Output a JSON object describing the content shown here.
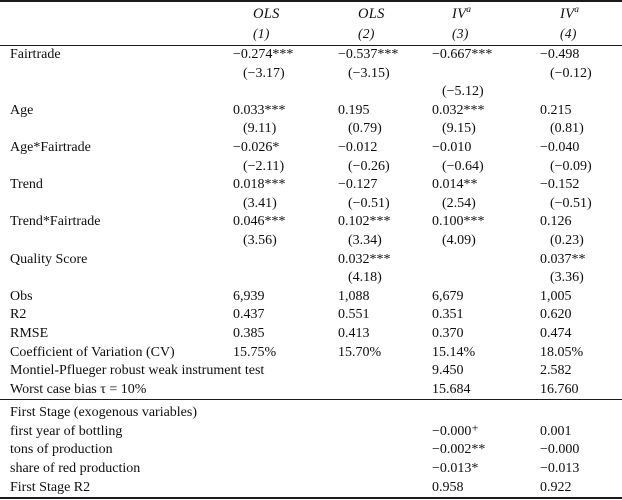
{
  "table": {
    "header": {
      "cols": [
        {
          "name": "OLS",
          "sup": "",
          "num": "(1)"
        },
        {
          "name": "OLS",
          "sup": "",
          "num": "(2)"
        },
        {
          "name": "IV",
          "sup": "a",
          "num": "(3)"
        },
        {
          "name": "IV",
          "sup": "a",
          "num": "(4)"
        }
      ]
    },
    "rows": [
      {
        "label": "Fairtrade",
        "cells": [
          "−0.274***",
          "−0.537***",
          "−0.667***",
          "−0.498"
        ]
      },
      {
        "t": true,
        "label": "",
        "cells": [
          "(−3.17)",
          "(−3.15)",
          "",
          "(−0.12)"
        ]
      },
      {
        "t": true,
        "label": "",
        "cells": [
          "",
          "",
          "(−5.12)",
          ""
        ]
      },
      {
        "label": "Age",
        "cells": [
          "0.033***",
          "0.195",
          "0.032***",
          "0.215"
        ]
      },
      {
        "t": true,
        "label": "",
        "cells": [
          "(9.11)",
          "(0.79)",
          "(9.15)",
          "(0.81)"
        ]
      },
      {
        "label": "Age*Fairtrade",
        "cells": [
          "−0.026*",
          "−0.012",
          "−0.010",
          "−0.040"
        ]
      },
      {
        "t": true,
        "label": "",
        "cells": [
          "(−2.11)",
          "(−0.26)",
          "(−0.64)",
          "(−0.09)"
        ]
      },
      {
        "label": "Trend",
        "cells": [
          "0.018***",
          "−0.127",
          "0.014**",
          "−0.152"
        ]
      },
      {
        "t": true,
        "label": "",
        "cells": [
          "(3.41)",
          "(−0.51)",
          "(2.54)",
          "(−0.51)"
        ]
      },
      {
        "label": "Trend*Fairtrade",
        "cells": [
          "0.046***",
          "0.102***",
          "0.100***",
          "0.126"
        ]
      },
      {
        "t": true,
        "label": "",
        "cells": [
          "(3.56)",
          "(3.34)",
          "(4.09)",
          "(0.23)"
        ]
      },
      {
        "label": "Quality Score",
        "cells": [
          "",
          "0.032***",
          "",
          "0.037**"
        ]
      },
      {
        "t": true,
        "label": "",
        "cells": [
          "",
          "(4.18)",
          "",
          "(3.36)"
        ]
      },
      {
        "label": "Obs",
        "cells": [
          "6,939",
          "1,088",
          "6,679",
          "1,005"
        ]
      },
      {
        "label": "R2",
        "cells": [
          "0.437",
          "0.551",
          "0.351",
          "0.620"
        ]
      },
      {
        "label": "RMSE",
        "cells": [
          "0.385",
          "0.413",
          "0.370",
          "0.474"
        ]
      },
      {
        "label": "Coefficient of Variation (CV)",
        "cells": [
          "15.75%",
          "15.70%",
          "15.14%",
          "18.05%"
        ]
      },
      {
        "label": "Montiel-Pflueger robust weak instrument test",
        "cells": [
          "",
          "",
          "9.450",
          "2.582"
        ]
      },
      {
        "label": "Worst case bias τ = 10%",
        "cells": [
          "",
          "",
          "15.684",
          "16.760"
        ]
      }
    ],
    "first_stage_rows": [
      {
        "label": "First Stage (exogenous variables)",
        "cells": [
          "",
          "",
          "",
          ""
        ]
      },
      {
        "label": "first year of bottling",
        "cells": [
          "",
          "",
          "−0.000⁺",
          "0.001"
        ]
      },
      {
        "label": "tons of production",
        "cells": [
          "",
          "",
          "−0.002**",
          "−0.000"
        ]
      },
      {
        "label": "share of red production",
        "cells": [
          "",
          "",
          "−0.013*",
          "−0.013"
        ]
      },
      {
        "label": "First Stage R2",
        "cells": [
          "",
          "",
          "0.958",
          "0.922"
        ]
      }
    ]
  }
}
